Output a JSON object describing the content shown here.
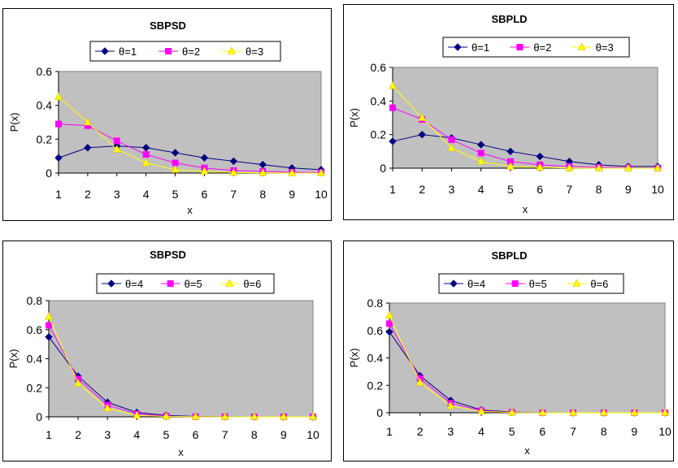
{
  "chart_data": [
    {
      "type": "line",
      "title": "SBPSD",
      "xlabel": "x",
      "ylabel": "P(x)",
      "categories": [
        1,
        2,
        3,
        4,
        5,
        6,
        7,
        8,
        9,
        10
      ],
      "ylim": [
        0,
        0.6
      ],
      "yticks": [
        0,
        0.2,
        0.4,
        0.6
      ],
      "ytick_labels": [
        "0",
        "0.2",
        "0.4",
        "0.6"
      ],
      "series": [
        {
          "name": "θ=1",
          "marker": "diamond",
          "color": "#000080",
          "values": [
            0.09,
            0.15,
            0.16,
            0.15,
            0.12,
            0.09,
            0.07,
            0.05,
            0.03,
            0.02
          ]
        },
        {
          "name": "θ=2",
          "marker": "square",
          "color": "#ff00ff",
          "values": [
            0.29,
            0.28,
            0.19,
            0.11,
            0.06,
            0.03,
            0.015,
            0.01,
            0.005,
            0.003
          ]
        },
        {
          "name": "θ=3",
          "marker": "triangle",
          "color": "#ffff00",
          "values": [
            0.45,
            0.3,
            0.14,
            0.06,
            0.02,
            0.01,
            0.003,
            0.001,
            0.0,
            0.0
          ]
        }
      ]
    },
    {
      "type": "line",
      "title": "SBPLD",
      "xlabel": "x",
      "ylabel": "P(x)",
      "categories": [
        1,
        2,
        3,
        4,
        5,
        6,
        7,
        8,
        9,
        10
      ],
      "ylim": [
        0,
        0.6
      ],
      "yticks": [
        0,
        0.2,
        0.4,
        0.6
      ],
      "ytick_labels": [
        "0",
        "0.2",
        "0.4",
        "0.6"
      ],
      "series": [
        {
          "name": "θ=1",
          "marker": "diamond",
          "color": "#000080",
          "values": [
            0.16,
            0.2,
            0.18,
            0.14,
            0.1,
            0.07,
            0.04,
            0.02,
            0.01,
            0.01
          ]
        },
        {
          "name": "θ=2",
          "marker": "square",
          "color": "#ff00ff",
          "values": [
            0.36,
            0.29,
            0.17,
            0.09,
            0.04,
            0.02,
            0.01,
            0.005,
            0.002,
            0.001
          ]
        },
        {
          "name": "θ=3",
          "marker": "triangle",
          "color": "#ffff00",
          "values": [
            0.49,
            0.3,
            0.12,
            0.04,
            0.01,
            0.005,
            0.001,
            0.0,
            0.0,
            0.0
          ]
        }
      ]
    },
    {
      "type": "line",
      "title": "SBPSD",
      "xlabel": "x",
      "ylabel": "P(x)",
      "categories": [
        1,
        2,
        3,
        4,
        5,
        6,
        7,
        8,
        9,
        10
      ],
      "ylim": [
        0,
        0.8
      ],
      "yticks": [
        0,
        0.2,
        0.4,
        0.6,
        0.8
      ],
      "ytick_labels": [
        "0",
        "0.2",
        "0.4",
        "0.6",
        "0.8"
      ],
      "series": [
        {
          "name": "θ=4",
          "marker": "diamond",
          "color": "#000080",
          "values": [
            0.55,
            0.28,
            0.1,
            0.03,
            0.01,
            0.003,
            0.001,
            0.0,
            0.0,
            0.0
          ]
        },
        {
          "name": "θ=5",
          "marker": "square",
          "color": "#ff00ff",
          "values": [
            0.63,
            0.26,
            0.08,
            0.02,
            0.005,
            0.001,
            0.0,
            0.0,
            0.0,
            0.0
          ]
        },
        {
          "name": "θ=6",
          "marker": "triangle",
          "color": "#ffff00",
          "values": [
            0.69,
            0.23,
            0.06,
            0.01,
            0.003,
            0.001,
            0.0,
            0.0,
            0.0,
            0.0
          ]
        }
      ]
    },
    {
      "type": "line",
      "title": "SBPLD",
      "xlabel": "x",
      "ylabel": "P(x)",
      "categories": [
        1,
        2,
        3,
        4,
        5,
        6,
        7,
        8,
        9,
        10
      ],
      "ylim": [
        0,
        0.8
      ],
      "yticks": [
        0,
        0.2,
        0.4,
        0.6,
        0.8
      ],
      "ytick_labels": [
        "0",
        "0.2",
        "0.4",
        "0.6",
        "0.8"
      ],
      "series": [
        {
          "name": "θ=4",
          "marker": "diamond",
          "color": "#000080",
          "values": [
            0.59,
            0.27,
            0.09,
            0.02,
            0.005,
            0.001,
            0.0,
            0.0,
            0.0,
            0.0
          ]
        },
        {
          "name": "θ=5",
          "marker": "square",
          "color": "#ff00ff",
          "values": [
            0.65,
            0.25,
            0.07,
            0.015,
            0.003,
            0.0,
            0.0,
            0.0,
            0.0,
            0.0
          ]
        },
        {
          "name": "θ=6",
          "marker": "triangle",
          "color": "#ffff00",
          "values": [
            0.71,
            0.22,
            0.05,
            0.01,
            0.002,
            0.0,
            0.0,
            0.0,
            0.0,
            0.0
          ]
        }
      ]
    }
  ]
}
